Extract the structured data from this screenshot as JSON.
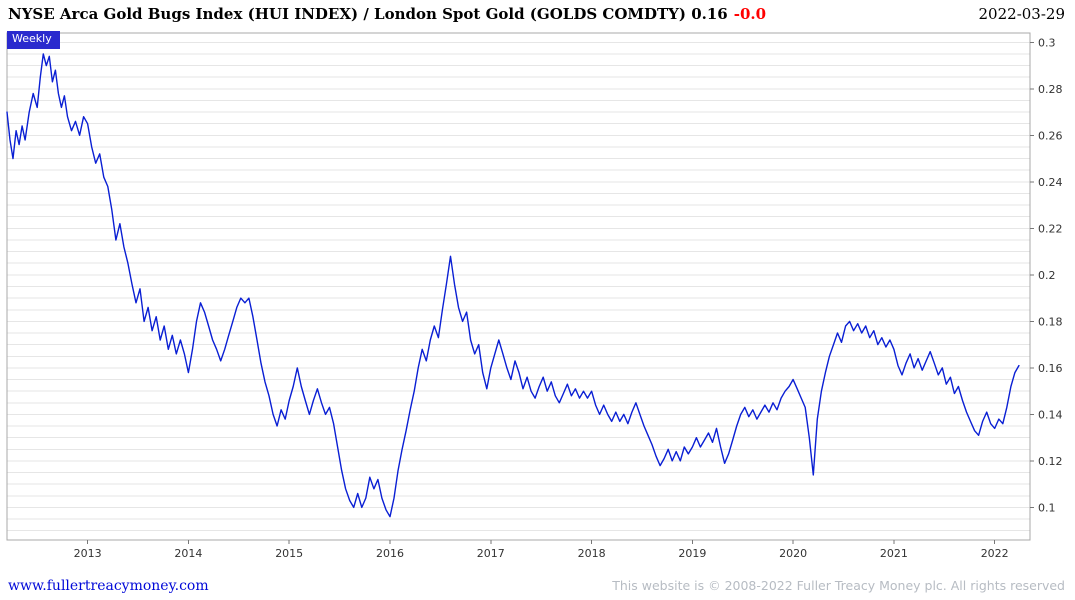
{
  "header": {
    "title": "NYSE Arca Gold Bugs Index (HUI INDEX) / London Spot Gold (GOLDS COMDTY) 0.16",
    "change": "-0.0",
    "change_color": "#ff0000",
    "date": "2022-03-29"
  },
  "plot": {
    "frequency_label": "Weekly",
    "frequency_bg": "#2a2ace"
  },
  "footer": {
    "site_link": "www.fullertreacymoney.com",
    "site_link_color": "#0008d8",
    "copyright": "This website is © 2008-2022 Fuller Treacy Money plc. All rights reserved",
    "copyright_color": "#b7bcc3"
  },
  "chart_data": {
    "type": "line",
    "title": "NYSE Arca Gold Bugs Index (HUI INDEX) / London Spot Gold (GOLDS COMDTY)",
    "frequency": "Weekly",
    "last_value": 0.16,
    "change": -0.0,
    "xlim": [
      2012.2,
      2022.35
    ],
    "ylim": [
      0.086,
      0.304
    ],
    "grid": "horizontal-minor",
    "grid_minor": {
      "start": 0.09,
      "end": 0.3,
      "step": 0.005,
      "color": "#e6e6e6"
    },
    "frame_color": "#a8a8a8",
    "tick_color": "#777777",
    "label_color": "#333333",
    "x_ticks": [
      {
        "value": 2013,
        "label": "2013"
      },
      {
        "value": 2014,
        "label": "2014"
      },
      {
        "value": 2015,
        "label": "2015"
      },
      {
        "value": 2016,
        "label": "2016"
      },
      {
        "value": 2017,
        "label": "2017"
      },
      {
        "value": 2018,
        "label": "2018"
      },
      {
        "value": 2019,
        "label": "2019"
      },
      {
        "value": 2020,
        "label": "2020"
      },
      {
        "value": 2021,
        "label": "2021"
      },
      {
        "value": 2022,
        "label": "2022"
      }
    ],
    "y_ticks": [
      {
        "value": 0.1,
        "label": "0.1"
      },
      {
        "value": 0.12,
        "label": "0.12"
      },
      {
        "value": 0.14,
        "label": "0.14"
      },
      {
        "value": 0.16,
        "label": "0.16"
      },
      {
        "value": 0.18,
        "label": "0.18"
      },
      {
        "value": 0.2,
        "label": "0.2"
      },
      {
        "value": 0.22,
        "label": "0.22"
      },
      {
        "value": 0.24,
        "label": "0.24"
      },
      {
        "value": 0.26,
        "label": "0.26"
      },
      {
        "value": 0.28,
        "label": "0.28"
      },
      {
        "value": 0.3,
        "label": "0.3"
      }
    ],
    "series": [
      {
        "name": "HUI Index / London Spot Gold ratio",
        "color": "#0a1fd4",
        "points": [
          [
            2012.2,
            0.27
          ],
          [
            2012.23,
            0.258
          ],
          [
            2012.26,
            0.25
          ],
          [
            2012.29,
            0.262
          ],
          [
            2012.32,
            0.256
          ],
          [
            2012.35,
            0.264
          ],
          [
            2012.38,
            0.258
          ],
          [
            2012.42,
            0.27
          ],
          [
            2012.46,
            0.278
          ],
          [
            2012.5,
            0.272
          ],
          [
            2012.53,
            0.285
          ],
          [
            2012.56,
            0.295
          ],
          [
            2012.59,
            0.29
          ],
          [
            2012.62,
            0.294
          ],
          [
            2012.65,
            0.283
          ],
          [
            2012.68,
            0.288
          ],
          [
            2012.71,
            0.278
          ],
          [
            2012.74,
            0.272
          ],
          [
            2012.77,
            0.277
          ],
          [
            2012.8,
            0.268
          ],
          [
            2012.84,
            0.262
          ],
          [
            2012.88,
            0.266
          ],
          [
            2012.92,
            0.26
          ],
          [
            2012.96,
            0.268
          ],
          [
            2013.0,
            0.265
          ],
          [
            2013.04,
            0.255
          ],
          [
            2013.08,
            0.248
          ],
          [
            2013.12,
            0.252
          ],
          [
            2013.16,
            0.242
          ],
          [
            2013.2,
            0.238
          ],
          [
            2013.24,
            0.228
          ],
          [
            2013.28,
            0.215
          ],
          [
            2013.32,
            0.222
          ],
          [
            2013.36,
            0.212
          ],
          [
            2013.4,
            0.205
          ],
          [
            2013.44,
            0.196
          ],
          [
            2013.48,
            0.188
          ],
          [
            2013.52,
            0.194
          ],
          [
            2013.56,
            0.18
          ],
          [
            2013.6,
            0.186
          ],
          [
            2013.64,
            0.176
          ],
          [
            2013.68,
            0.182
          ],
          [
            2013.72,
            0.172
          ],
          [
            2013.76,
            0.178
          ],
          [
            2013.8,
            0.168
          ],
          [
            2013.84,
            0.174
          ],
          [
            2013.88,
            0.166
          ],
          [
            2013.92,
            0.172
          ],
          [
            2013.96,
            0.166
          ],
          [
            2014.0,
            0.158
          ],
          [
            2014.04,
            0.168
          ],
          [
            2014.08,
            0.18
          ],
          [
            2014.12,
            0.188
          ],
          [
            2014.16,
            0.184
          ],
          [
            2014.2,
            0.178
          ],
          [
            2014.24,
            0.172
          ],
          [
            2014.28,
            0.168
          ],
          [
            2014.32,
            0.163
          ],
          [
            2014.36,
            0.168
          ],
          [
            2014.4,
            0.174
          ],
          [
            2014.44,
            0.18
          ],
          [
            2014.48,
            0.186
          ],
          [
            2014.52,
            0.19
          ],
          [
            2014.56,
            0.188
          ],
          [
            2014.6,
            0.19
          ],
          [
            2014.64,
            0.182
          ],
          [
            2014.68,
            0.172
          ],
          [
            2014.72,
            0.162
          ],
          [
            2014.76,
            0.154
          ],
          [
            2014.8,
            0.148
          ],
          [
            2014.84,
            0.14
          ],
          [
            2014.88,
            0.135
          ],
          [
            2014.92,
            0.142
          ],
          [
            2014.96,
            0.138
          ],
          [
            2015.0,
            0.146
          ],
          [
            2015.04,
            0.152
          ],
          [
            2015.08,
            0.16
          ],
          [
            2015.12,
            0.152
          ],
          [
            2015.16,
            0.146
          ],
          [
            2015.2,
            0.14
          ],
          [
            2015.24,
            0.146
          ],
          [
            2015.28,
            0.151
          ],
          [
            2015.32,
            0.145
          ],
          [
            2015.36,
            0.14
          ],
          [
            2015.4,
            0.143
          ],
          [
            2015.44,
            0.136
          ],
          [
            2015.48,
            0.126
          ],
          [
            2015.52,
            0.116
          ],
          [
            2015.56,
            0.108
          ],
          [
            2015.6,
            0.103
          ],
          [
            2015.64,
            0.1
          ],
          [
            2015.68,
            0.106
          ],
          [
            2015.72,
            0.1
          ],
          [
            2015.76,
            0.104
          ],
          [
            2015.8,
            0.113
          ],
          [
            2015.84,
            0.108
          ],
          [
            2015.88,
            0.112
          ],
          [
            2015.92,
            0.104
          ],
          [
            2015.96,
            0.099
          ],
          [
            2016.0,
            0.096
          ],
          [
            2016.04,
            0.104
          ],
          [
            2016.08,
            0.116
          ],
          [
            2016.12,
            0.125
          ],
          [
            2016.16,
            0.133
          ],
          [
            2016.2,
            0.142
          ],
          [
            2016.24,
            0.15
          ],
          [
            2016.28,
            0.16
          ],
          [
            2016.32,
            0.168
          ],
          [
            2016.36,
            0.163
          ],
          [
            2016.4,
            0.172
          ],
          [
            2016.44,
            0.178
          ],
          [
            2016.48,
            0.173
          ],
          [
            2016.52,
            0.185
          ],
          [
            2016.56,
            0.196
          ],
          [
            2016.6,
            0.208
          ],
          [
            2016.64,
            0.196
          ],
          [
            2016.68,
            0.186
          ],
          [
            2016.72,
            0.18
          ],
          [
            2016.76,
            0.184
          ],
          [
            2016.8,
            0.172
          ],
          [
            2016.84,
            0.166
          ],
          [
            2016.88,
            0.17
          ],
          [
            2016.92,
            0.158
          ],
          [
            2016.96,
            0.151
          ],
          [
            2017.0,
            0.16
          ],
          [
            2017.04,
            0.166
          ],
          [
            2017.08,
            0.172
          ],
          [
            2017.12,
            0.166
          ],
          [
            2017.16,
            0.16
          ],
          [
            2017.2,
            0.155
          ],
          [
            2017.24,
            0.163
          ],
          [
            2017.28,
            0.158
          ],
          [
            2017.32,
            0.151
          ],
          [
            2017.36,
            0.156
          ],
          [
            2017.4,
            0.15
          ],
          [
            2017.44,
            0.147
          ],
          [
            2017.48,
            0.152
          ],
          [
            2017.52,
            0.156
          ],
          [
            2017.56,
            0.15
          ],
          [
            2017.6,
            0.154
          ],
          [
            2017.64,
            0.148
          ],
          [
            2017.68,
            0.145
          ],
          [
            2017.72,
            0.149
          ],
          [
            2017.76,
            0.153
          ],
          [
            2017.8,
            0.148
          ],
          [
            2017.84,
            0.151
          ],
          [
            2017.88,
            0.147
          ],
          [
            2017.92,
            0.15
          ],
          [
            2017.96,
            0.147
          ],
          [
            2018.0,
            0.15
          ],
          [
            2018.04,
            0.144
          ],
          [
            2018.08,
            0.14
          ],
          [
            2018.12,
            0.144
          ],
          [
            2018.16,
            0.14
          ],
          [
            2018.2,
            0.137
          ],
          [
            2018.24,
            0.141
          ],
          [
            2018.28,
            0.137
          ],
          [
            2018.32,
            0.14
          ],
          [
            2018.36,
            0.136
          ],
          [
            2018.4,
            0.141
          ],
          [
            2018.44,
            0.145
          ],
          [
            2018.48,
            0.14
          ],
          [
            2018.52,
            0.135
          ],
          [
            2018.56,
            0.131
          ],
          [
            2018.6,
            0.127
          ],
          [
            2018.64,
            0.122
          ],
          [
            2018.68,
            0.118
          ],
          [
            2018.72,
            0.121
          ],
          [
            2018.76,
            0.125
          ],
          [
            2018.8,
            0.12
          ],
          [
            2018.84,
            0.124
          ],
          [
            2018.88,
            0.12
          ],
          [
            2018.92,
            0.126
          ],
          [
            2018.96,
            0.123
          ],
          [
            2019.0,
            0.126
          ],
          [
            2019.04,
            0.13
          ],
          [
            2019.08,
            0.126
          ],
          [
            2019.12,
            0.129
          ],
          [
            2019.16,
            0.132
          ],
          [
            2019.2,
            0.128
          ],
          [
            2019.24,
            0.134
          ],
          [
            2019.28,
            0.126
          ],
          [
            2019.32,
            0.119
          ],
          [
            2019.36,
            0.123
          ],
          [
            2019.4,
            0.129
          ],
          [
            2019.44,
            0.135
          ],
          [
            2019.48,
            0.14
          ],
          [
            2019.52,
            0.143
          ],
          [
            2019.56,
            0.139
          ],
          [
            2019.6,
            0.142
          ],
          [
            2019.64,
            0.138
          ],
          [
            2019.68,
            0.141
          ],
          [
            2019.72,
            0.144
          ],
          [
            2019.76,
            0.141
          ],
          [
            2019.8,
            0.145
          ],
          [
            2019.84,
            0.142
          ],
          [
            2019.88,
            0.147
          ],
          [
            2019.92,
            0.15
          ],
          [
            2019.96,
            0.152
          ],
          [
            2020.0,
            0.155
          ],
          [
            2020.04,
            0.151
          ],
          [
            2020.08,
            0.147
          ],
          [
            2020.12,
            0.143
          ],
          [
            2020.16,
            0.13
          ],
          [
            2020.2,
            0.114
          ],
          [
            2020.24,
            0.138
          ],
          [
            2020.28,
            0.15
          ],
          [
            2020.32,
            0.158
          ],
          [
            2020.36,
            0.165
          ],
          [
            2020.4,
            0.17
          ],
          [
            2020.44,
            0.175
          ],
          [
            2020.48,
            0.171
          ],
          [
            2020.52,
            0.178
          ],
          [
            2020.56,
            0.18
          ],
          [
            2020.6,
            0.176
          ],
          [
            2020.64,
            0.179
          ],
          [
            2020.68,
            0.175
          ],
          [
            2020.72,
            0.178
          ],
          [
            2020.76,
            0.173
          ],
          [
            2020.8,
            0.176
          ],
          [
            2020.84,
            0.17
          ],
          [
            2020.88,
            0.173
          ],
          [
            2020.92,
            0.169
          ],
          [
            2020.96,
            0.172
          ],
          [
            2021.0,
            0.168
          ],
          [
            2021.04,
            0.161
          ],
          [
            2021.08,
            0.157
          ],
          [
            2021.12,
            0.162
          ],
          [
            2021.16,
            0.166
          ],
          [
            2021.2,
            0.16
          ],
          [
            2021.24,
            0.164
          ],
          [
            2021.28,
            0.159
          ],
          [
            2021.32,
            0.163
          ],
          [
            2021.36,
            0.167
          ],
          [
            2021.4,
            0.162
          ],
          [
            2021.44,
            0.157
          ],
          [
            2021.48,
            0.16
          ],
          [
            2021.52,
            0.153
          ],
          [
            2021.56,
            0.156
          ],
          [
            2021.6,
            0.149
          ],
          [
            2021.64,
            0.152
          ],
          [
            2021.68,
            0.146
          ],
          [
            2021.72,
            0.141
          ],
          [
            2021.76,
            0.137
          ],
          [
            2021.8,
            0.133
          ],
          [
            2021.84,
            0.131
          ],
          [
            2021.88,
            0.137
          ],
          [
            2021.92,
            0.141
          ],
          [
            2021.96,
            0.136
          ],
          [
            2022.0,
            0.134
          ],
          [
            2022.04,
            0.138
          ],
          [
            2022.08,
            0.136
          ],
          [
            2022.12,
            0.143
          ],
          [
            2022.16,
            0.152
          ],
          [
            2022.2,
            0.158
          ],
          [
            2022.24,
            0.161
          ]
        ]
      }
    ]
  }
}
